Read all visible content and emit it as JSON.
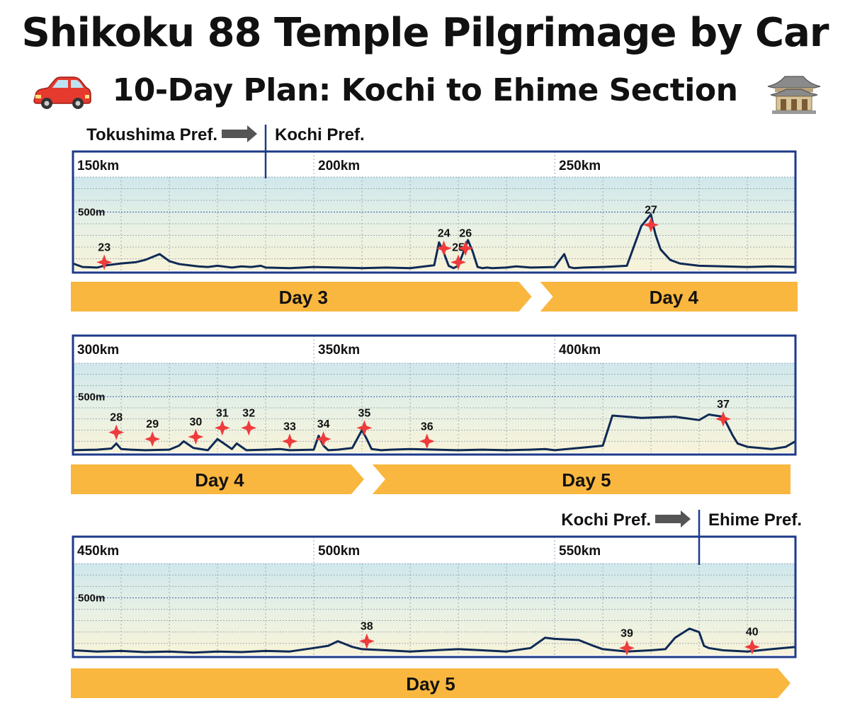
{
  "header": {
    "title": "Shikoku 88 Temple Pilgrimage by Car",
    "subtitle": "10-Day Plan: Kochi to Ehime Section",
    "left_icon": "car-icon",
    "right_icon": "temple-icon"
  },
  "colors": {
    "frame": "#1e3a8a",
    "profile_line": "#0f2a55",
    "marker": "#ef3b3b",
    "day_bar": "#f9b73f",
    "arrow": "#555555",
    "sky_top": "#cfe7ec",
    "ground": "#f7f3d9"
  },
  "prefecture_boundaries": [
    {
      "from": "Tokushima Pref.",
      "to": "Kochi Pref.",
      "km": 190
    },
    {
      "from": "Kochi Pref.",
      "to": "Ehime Pref.",
      "km": 580
    }
  ],
  "panels": [
    {
      "km_labels": [
        "150km",
        "200km",
        "250km"
      ],
      "elevation_label": "500m",
      "days": [
        {
          "label": "Day 3"
        },
        {
          "label": "Day 4"
        }
      ]
    },
    {
      "km_labels": [
        "300km",
        "350km",
        "400km"
      ],
      "elevation_label": "500m",
      "days": [
        {
          "label": "Day 4"
        },
        {
          "label": "Day 5"
        }
      ]
    },
    {
      "km_labels": [
        "450km",
        "500km",
        "550km"
      ],
      "elevation_label": "500m",
      "days": [
        {
          "label": "Day 5"
        }
      ]
    }
  ],
  "chart_data": [
    {
      "type": "area",
      "xlabel": "",
      "ylabel": "",
      "xlim": [
        150,
        300
      ],
      "ylim": [
        0,
        800
      ],
      "y_gridline": 500,
      "grid": true,
      "series": [
        {
          "x": [
            150,
            152,
            155,
            157,
            160,
            163,
            165,
            168,
            170,
            172,
            174,
            176,
            178,
            180,
            183,
            185,
            187,
            189,
            190,
            195,
            200,
            205,
            210,
            215,
            220,
            225,
            226,
            227,
            228,
            229,
            230,
            232,
            233,
            234,
            235,
            236,
            237,
            240,
            242,
            245,
            250,
            252,
            253,
            254,
            256,
            260,
            265,
            268,
            270,
            270.5,
            271,
            272,
            274,
            276,
            280,
            285,
            290,
            295,
            300
          ],
          "y": [
            60,
            30,
            25,
            45,
            60,
            70,
            90,
            140,
            80,
            55,
            45,
            35,
            30,
            40,
            25,
            35,
            30,
            40,
            25,
            20,
            30,
            25,
            20,
            25,
            20,
            45,
            240,
            150,
            40,
            20,
            40,
            260,
            160,
            30,
            20,
            25,
            20,
            25,
            35,
            25,
            30,
            140,
            30,
            20,
            25,
            30,
            40,
            380,
            480,
            380,
            300,
            180,
            90,
            60,
            40,
            35,
            30,
            35,
            30
          ]
        }
      ],
      "temples": [
        {
          "number": "23",
          "km": 156.5,
          "elev": 70
        },
        {
          "number": "24",
          "km": 227,
          "elev": 190
        },
        {
          "number": "25",
          "km": 230,
          "elev": 70
        },
        {
          "number": "26",
          "km": 231.5,
          "elev": 190
        },
        {
          "number": "27",
          "km": 270,
          "elev": 390
        }
      ],
      "day_segments": [
        {
          "label": "Day 3",
          "from_km": 150,
          "to_km": 246
        },
        {
          "label": "Day 4",
          "from_km": 246,
          "to_km": 300
        }
      ]
    },
    {
      "type": "area",
      "xlabel": "",
      "ylabel": "",
      "xlim": [
        300,
        450
      ],
      "ylim": [
        0,
        800
      ],
      "y_gridline": 500,
      "grid": true,
      "series": [
        {
          "x": [
            300,
            305,
            308,
            309,
            310,
            312,
            315,
            320,
            322,
            323,
            324,
            325,
            328,
            330,
            332,
            333,
            334,
            336,
            340,
            343,
            345,
            350,
            351,
            352,
            353,
            355,
            358,
            360,
            361,
            362,
            364,
            366,
            370,
            380,
            385,
            390,
            395,
            398,
            400,
            405,
            410,
            412,
            415,
            418,
            425,
            430,
            432,
            435,
            437,
            438,
            440,
            445,
            448,
            450
          ],
          "y": [
            20,
            25,
            35,
            80,
            30,
            25,
            20,
            25,
            60,
            100,
            70,
            40,
            20,
            120,
            60,
            30,
            80,
            20,
            25,
            30,
            20,
            25,
            150,
            60,
            20,
            25,
            40,
            200,
            120,
            30,
            20,
            25,
            30,
            20,
            25,
            20,
            25,
            30,
            20,
            40,
            60,
            330,
            320,
            310,
            320,
            290,
            340,
            320,
            150,
            80,
            50,
            30,
            50,
            100
          ]
        }
      ],
      "temples": [
        {
          "number": "28",
          "km": 309,
          "elev": 180
        },
        {
          "number": "29",
          "km": 316.5,
          "elev": 120
        },
        {
          "number": "30",
          "km": 325.5,
          "elev": 140
        },
        {
          "number": "31",
          "km": 331,
          "elev": 220
        },
        {
          "number": "32",
          "km": 336.5,
          "elev": 220
        },
        {
          "number": "33",
          "km": 345,
          "elev": 100
        },
        {
          "number": "34",
          "km": 352,
          "elev": 120
        },
        {
          "number": "35",
          "km": 360.5,
          "elev": 220
        },
        {
          "number": "36",
          "km": 373.5,
          "elev": 100
        },
        {
          "number": "37",
          "km": 435,
          "elev": 300
        }
      ],
      "day_segments": [
        {
          "label": "Day 4",
          "from_km": 300,
          "to_km": 362
        },
        {
          "label": "Day 5",
          "from_km": 362,
          "to_km": 450
        }
      ]
    },
    {
      "type": "area",
      "xlabel": "",
      "ylabel": "",
      "xlim": [
        450,
        600
      ],
      "ylim": [
        0,
        800
      ],
      "y_gridline": 500,
      "grid": true,
      "series": [
        {
          "x": [
            450,
            455,
            460,
            465,
            470,
            475,
            480,
            485,
            490,
            495,
            500,
            503,
            505,
            508,
            510,
            515,
            520,
            525,
            530,
            535,
            540,
            545,
            548,
            550,
            555,
            558,
            560,
            565,
            570,
            573,
            575,
            578,
            580,
            581,
            582,
            585,
            590,
            595,
            600
          ],
          "y": [
            40,
            30,
            35,
            25,
            30,
            20,
            30,
            25,
            35,
            30,
            60,
            80,
            120,
            70,
            50,
            40,
            30,
            40,
            50,
            40,
            30,
            60,
            150,
            140,
            130,
            80,
            50,
            30,
            40,
            50,
            150,
            230,
            200,
            80,
            60,
            40,
            30,
            50,
            70
          ]
        }
      ],
      "temples": [
        {
          "number": "38",
          "km": 511,
          "elev": 120
        },
        {
          "number": "39",
          "km": 565,
          "elev": 60
        },
        {
          "number": "40",
          "km": 591,
          "elev": 70
        }
      ],
      "day_segments": [
        {
          "label": "Day 5",
          "from_km": 450,
          "to_km": 600
        }
      ]
    }
  ]
}
